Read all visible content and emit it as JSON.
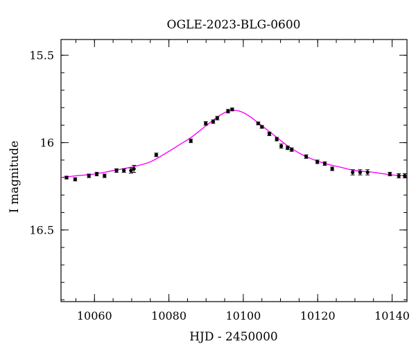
{
  "chart_data": {
    "type": "scatter",
    "title": "OGLE-2023-BLG-0600",
    "xlabel": "HJD - 2450000",
    "ylabel": "I magnitude",
    "xlim": [
      10051,
      10144
    ],
    "ylim": [
      16.91,
      15.41
    ],
    "y_inverted": true,
    "x_ticks": [
      10060,
      10080,
      10100,
      10120,
      10140
    ],
    "x_tick_labels": [
      "10060",
      "10080",
      "10100",
      "10120",
      "10140"
    ],
    "y_ticks": [
      15.5,
      16,
      16.5
    ],
    "y_tick_labels": [
      "15.5",
      "16",
      "16.5"
    ],
    "x_minor_step": 5,
    "y_minor_step": 0.1,
    "grid": false,
    "colors": {
      "points": "#000000",
      "model": "#ff00ff"
    },
    "series": [
      {
        "kind": "points",
        "x": [
          10052.5,
          10054.8,
          10058.5,
          10060.6,
          10062.7,
          10065.9,
          10067.9,
          10069.8,
          10070.6,
          10076.6,
          10085.9,
          10089.9,
          10091.9,
          10093.0,
          10095.9,
          10097.0,
          10104.0,
          10105.0,
          10107.0,
          10109.0,
          10110.2,
          10111.9,
          10113.0,
          10116.9,
          10119.9,
          10121.9,
          10123.9,
          10129.4,
          10131.4,
          10133.4,
          10139.4,
          10141.8,
          10143.4
        ],
        "y": [
          16.2,
          16.21,
          16.19,
          16.18,
          16.19,
          16.16,
          16.16,
          16.16,
          16.15,
          16.07,
          15.99,
          15.89,
          15.88,
          15.86,
          15.82,
          15.81,
          15.89,
          15.91,
          15.95,
          15.98,
          16.02,
          16.03,
          16.04,
          16.08,
          16.11,
          16.12,
          16.15,
          16.17,
          16.17,
          16.17,
          16.18,
          16.19,
          16.19
        ],
        "yerr": [
          0.008,
          0.009,
          0.01,
          0.01,
          0.01,
          0.01,
          0.01,
          0.015,
          0.02,
          0.01,
          0.01,
          0.01,
          0.01,
          0.01,
          0.01,
          0.008,
          0.008,
          0.008,
          0.01,
          0.01,
          0.012,
          0.01,
          0.01,
          0.01,
          0.01,
          0.01,
          0.01,
          0.015,
          0.015,
          0.015,
          0.01,
          0.012,
          0.012
        ]
      },
      {
        "kind": "model",
        "x": [
          10051,
          10055,
          10060,
          10065,
          10070,
          10075,
          10080,
          10083,
          10086,
          10089,
          10092,
          10094,
          10096,
          10097.5,
          10099,
          10101,
          10103,
          10106,
          10109,
          10112,
          10115,
          10118,
          10122,
          10126,
          10130,
          10135,
          10140,
          10144
        ],
        "y": [
          16.2,
          16.19,
          16.18,
          16.16,
          16.14,
          16.11,
          16.05,
          16.01,
          15.97,
          15.92,
          15.87,
          15.84,
          15.82,
          15.815,
          15.82,
          15.84,
          15.87,
          15.92,
          15.97,
          16.02,
          16.06,
          16.09,
          16.12,
          16.14,
          16.16,
          16.17,
          16.185,
          16.19
        ]
      }
    ]
  }
}
